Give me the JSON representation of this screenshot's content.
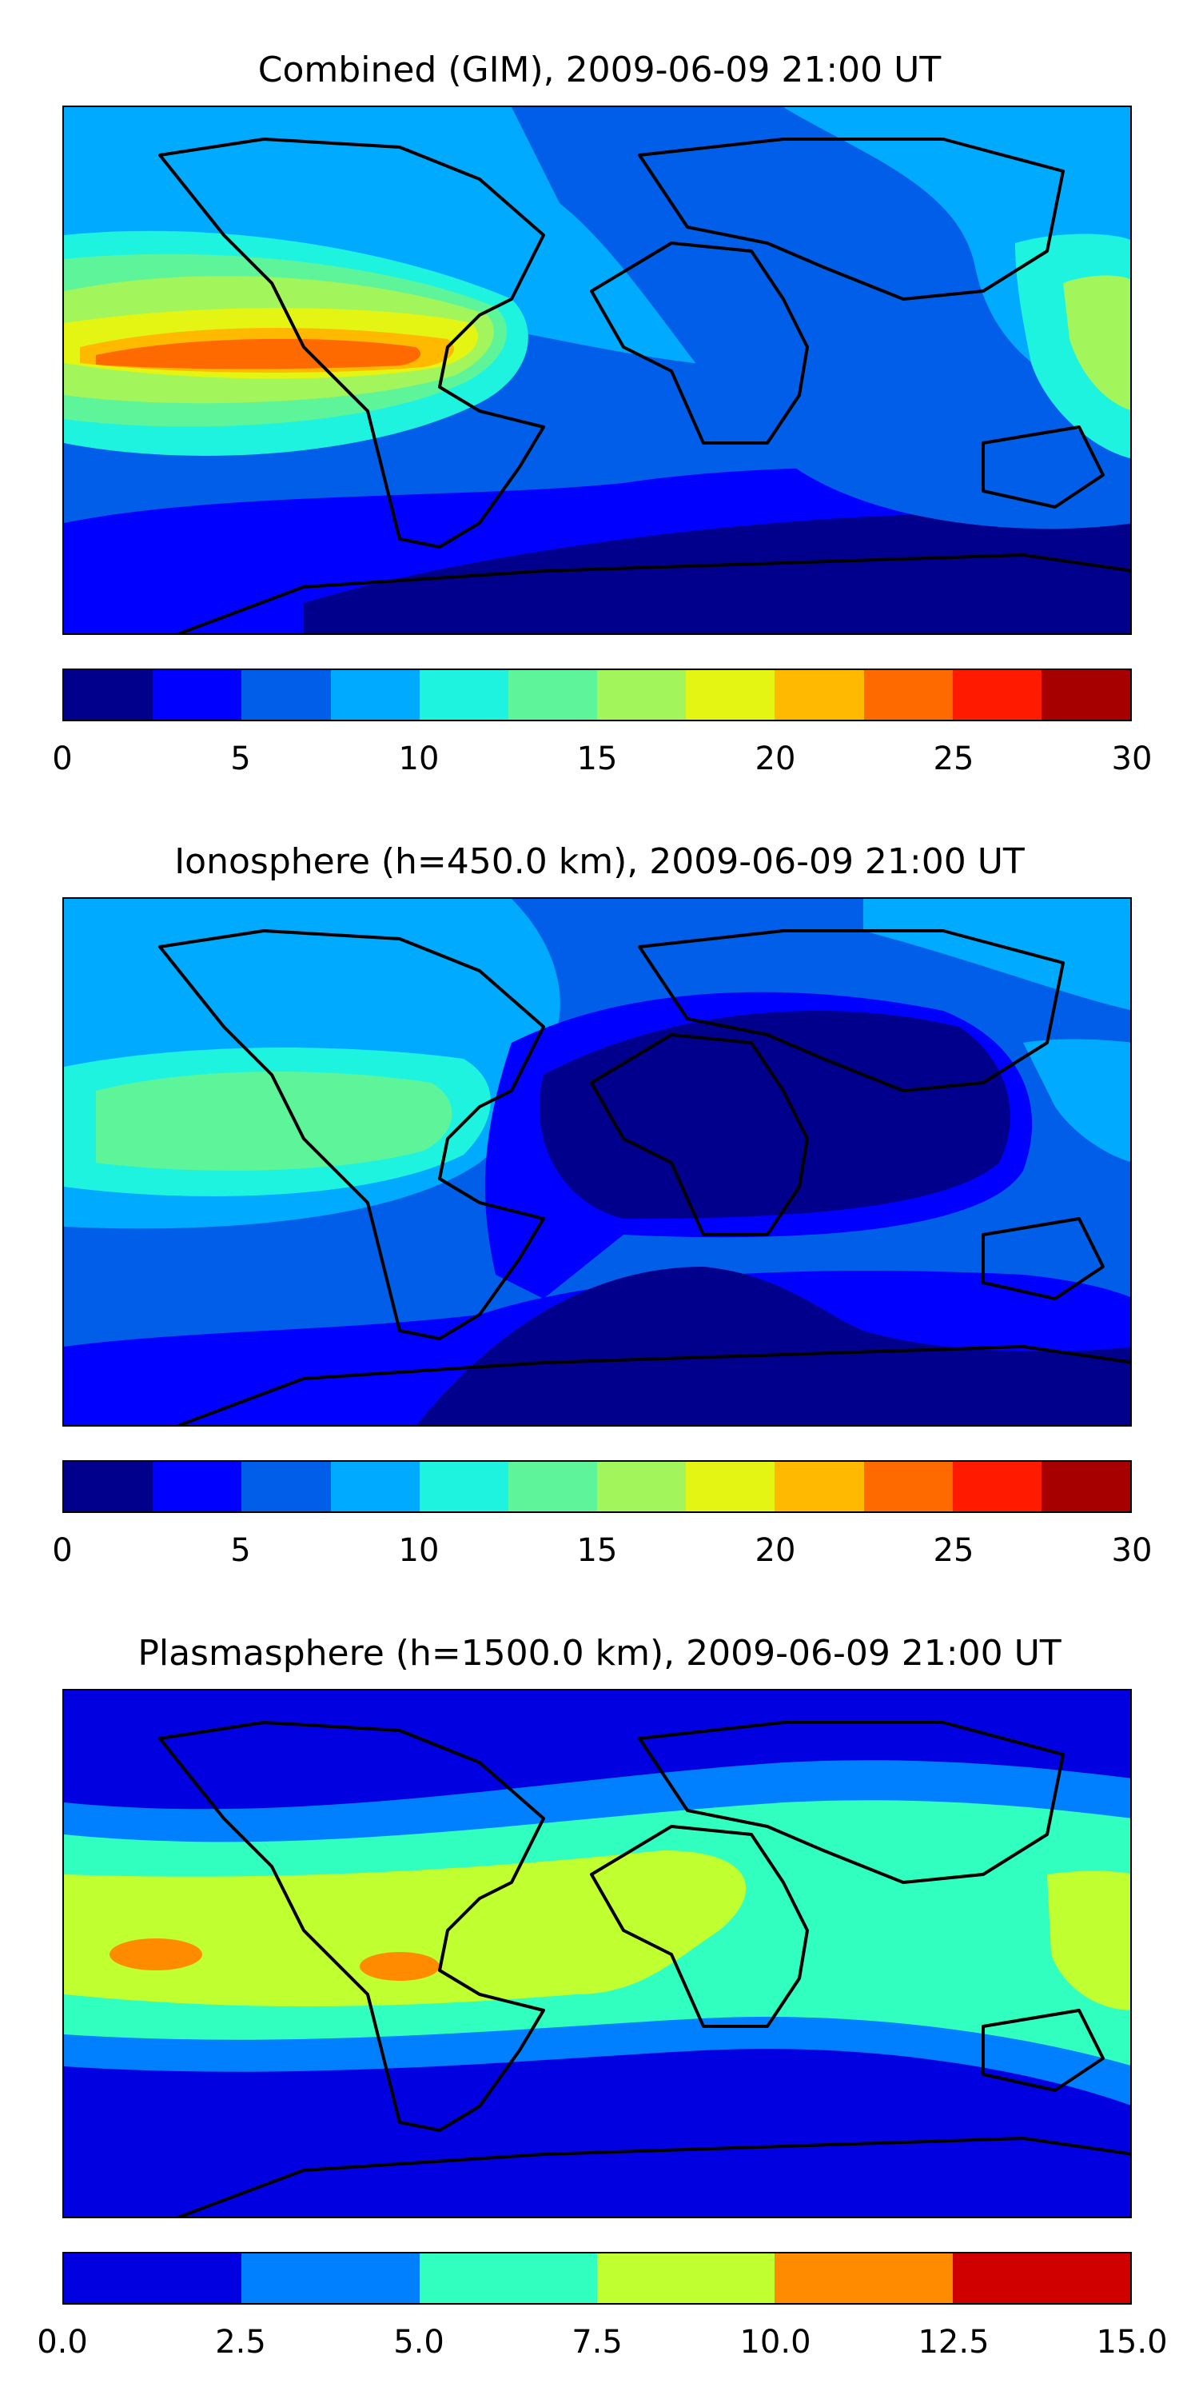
{
  "panels": [
    {
      "title": "Combined (GIM), 2009-06-09 21:00 UT",
      "colorbar": {
        "ticks": [
          "0",
          "5",
          "10",
          "15",
          "20",
          "25",
          "30"
        ],
        "colors": [
          "#00008d",
          "#0000ff",
          "#005ee8",
          "#00aaff",
          "#1ef3e0",
          "#5ef59a",
          "#a2f55a",
          "#e4f514",
          "#ffba00",
          "#ff6a00",
          "#ff1a00",
          "#a60000"
        ]
      }
    },
    {
      "title": "Ionosphere  (h=450.0 km), 2009-06-09 21:00 UT",
      "colorbar": {
        "ticks": [
          "0",
          "5",
          "10",
          "15",
          "20",
          "25",
          "30"
        ],
        "colors": [
          "#00008d",
          "#0000ff",
          "#005ee8",
          "#00aaff",
          "#1ef3e0",
          "#5ef59a",
          "#a2f55a",
          "#e4f514",
          "#ffba00",
          "#ff6a00",
          "#ff1a00",
          "#a60000"
        ]
      }
    },
    {
      "title": "Plasmasphere (h=1500.0 km), 2009-06-09 21:00 UT",
      "colorbar": {
        "ticks": [
          "0.0",
          "2.5",
          "5.0",
          "7.5",
          "10.0",
          "12.5",
          "15.0"
        ],
        "colors": [
          "#0000e0",
          "#0080ff",
          "#30ffc0",
          "#c0ff30",
          "#ff8c00",
          "#d00000"
        ]
      }
    }
  ]
}
